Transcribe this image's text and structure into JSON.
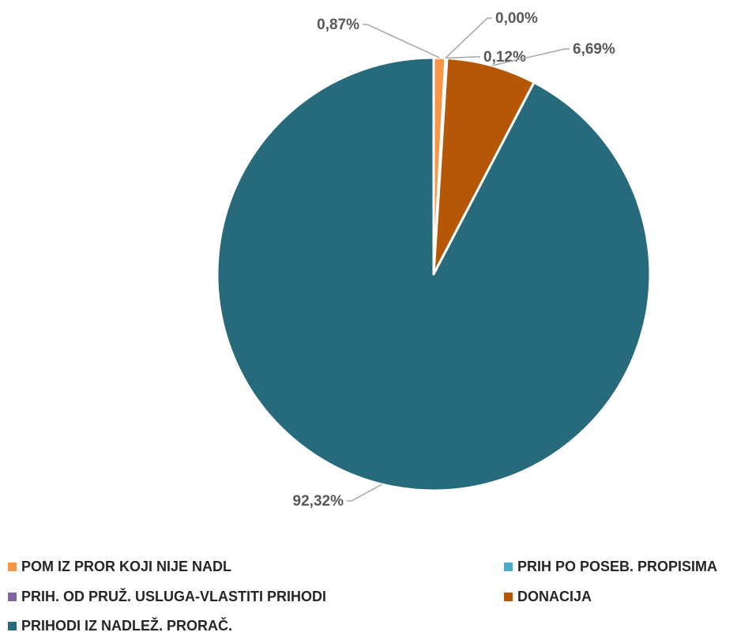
{
  "chart_data": {
    "type": "pie",
    "slices": [
      {
        "label": "POM IZ PROR KOJI NIJE NADL",
        "value": 0.87,
        "value_label": "0,87%",
        "color": "#F79646"
      },
      {
        "label": "PRIH PO POSEB. PROPISIMA",
        "value": 0.0,
        "value_label": "0,00%",
        "color": "#4BACC6"
      },
      {
        "label": "PRIH. OD PRUŽ. USLUGA-VLASTITI PRIHODI",
        "value": 0.12,
        "value_label": "0,12%",
        "color": "#8064A2"
      },
      {
        "label": "DONACIJA",
        "value": 6.69,
        "value_label": "6,69%",
        "color": "#B65708"
      },
      {
        "label": "PRIHODI IZ NADLEŽ. PRORAČ.",
        "value": 92.32,
        "value_label": "92,32%",
        "color": "#276A7C"
      }
    ],
    "legend_position": "bottom"
  }
}
